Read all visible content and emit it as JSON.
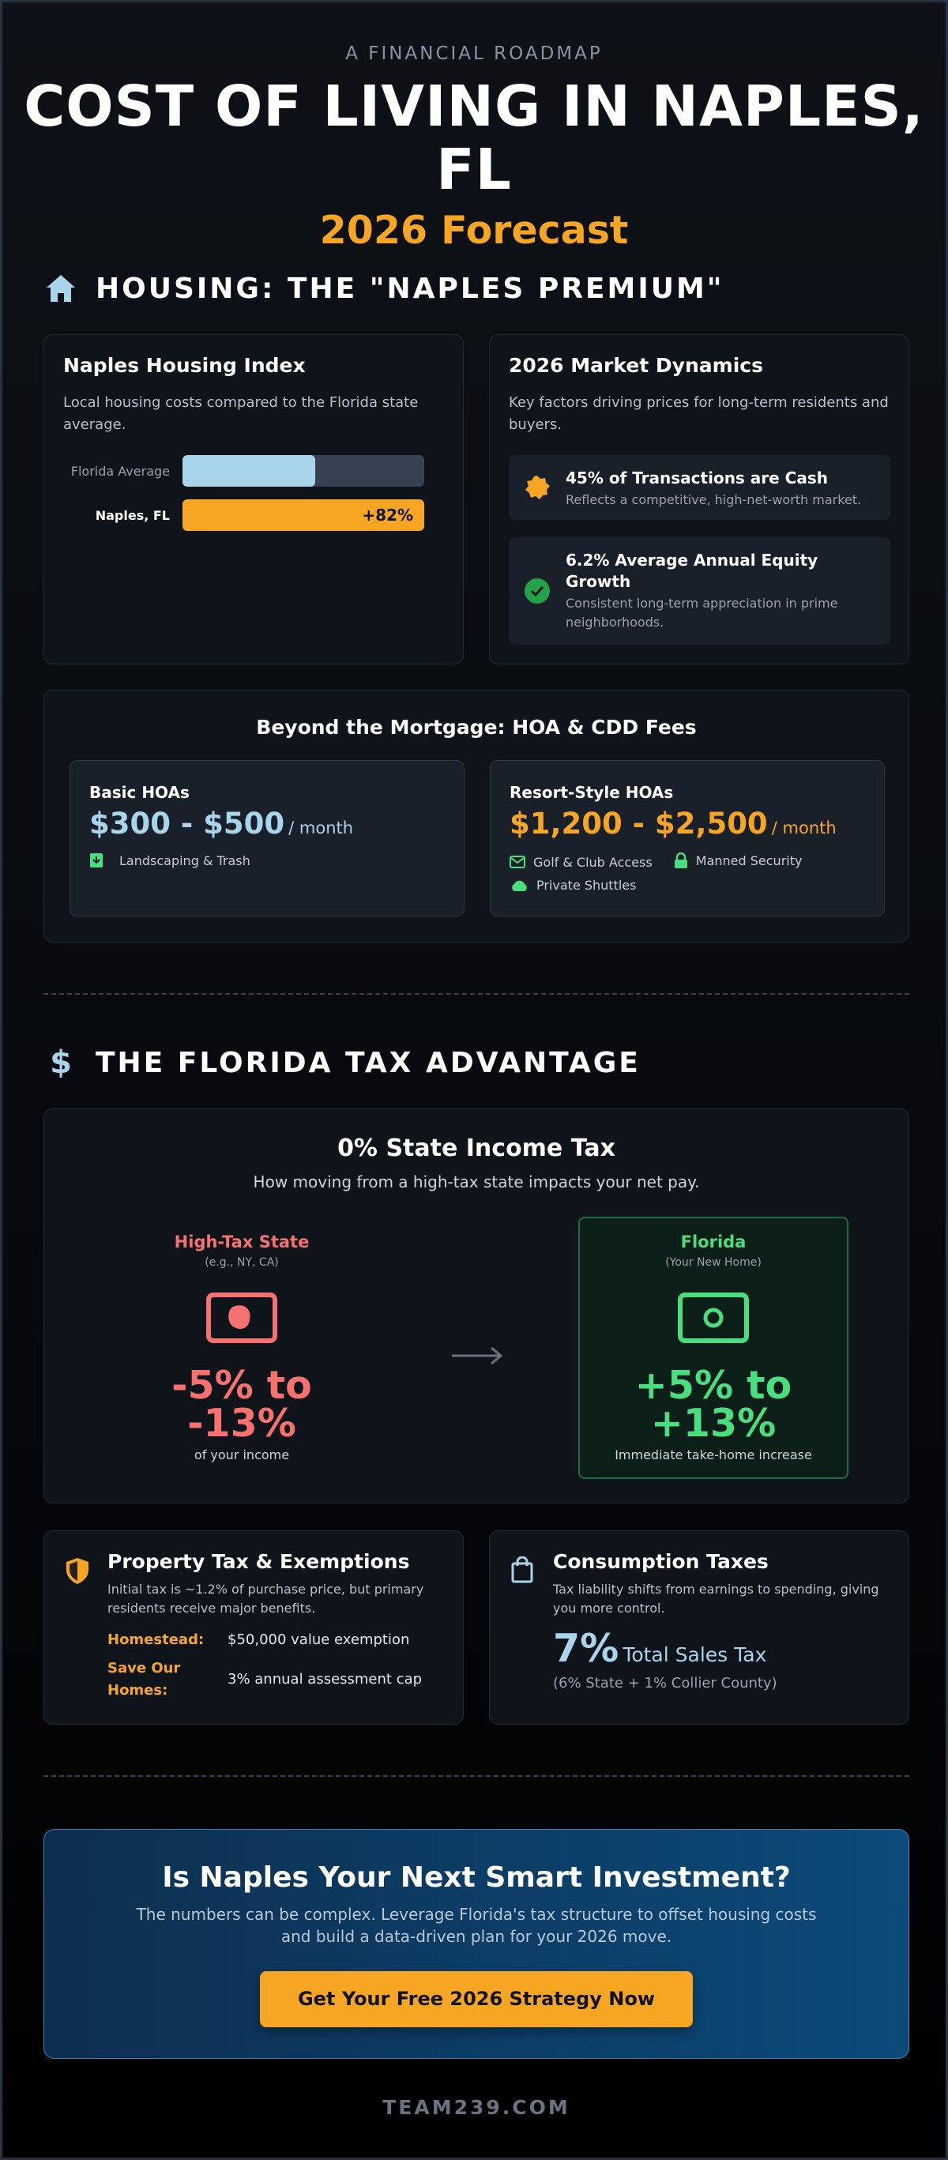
{
  "hero": {
    "eyebrow": "A FINANCIAL ROADMAP",
    "title_line1": "COST OF LIVING IN NAPLES,",
    "title_line2": "FL",
    "subtitle": "2026 Forecast"
  },
  "housing": {
    "heading": "HOUSING: THE \"NAPLES PREMIUM\"",
    "index_card": {
      "title": "Naples Housing Index",
      "description": "Local housing costs compared to the Florida state average.",
      "bars": [
        {
          "label": "Florida Average",
          "fill_fraction": 0.55,
          "color": "#a8d4ec",
          "value_label": ""
        },
        {
          "label": "Naples, FL",
          "fill_fraction": 1.0,
          "color": "#f6a623",
          "value_label": "+82%"
        }
      ]
    },
    "dynamics_card": {
      "title": "2026 Market Dynamics",
      "description": "Key factors driving prices for long-term residents and buyers.",
      "items": [
        {
          "icon": "badge-icon",
          "title": "45% of Transactions are Cash",
          "subtitle": "Reflects a competitive, high-net-worth market."
        },
        {
          "icon": "check-circle-icon",
          "title": "6.2% Average Annual Equity Growth",
          "subtitle": "Consistent long-term appreciation in prime neighborhoods."
        }
      ]
    },
    "hoa": {
      "title": "Beyond the Mortgage: HOA & CDD Fees",
      "basic": {
        "title": "Basic HOAs",
        "price": "$300 - $500",
        "unit": "/ month",
        "features": [
          {
            "icon": "trash-icon",
            "label": "Landscaping & Trash"
          }
        ]
      },
      "resort": {
        "title": "Resort-Style HOAs",
        "price": "$1,200 - $2,500",
        "unit": "/ month",
        "features": [
          {
            "icon": "mail-icon",
            "label": "Golf & Club Access"
          },
          {
            "icon": "lock-icon",
            "label": "Manned Security"
          },
          {
            "icon": "cloud-icon",
            "label": "Private Shuttles"
          }
        ]
      }
    }
  },
  "tax": {
    "heading": "THE FLORIDA TAX ADVANTAGE",
    "income": {
      "title": "0% State Income Tax",
      "subtitle": "How moving from a high-tax state impacts your net pay.",
      "high": {
        "title": "High-Tax State",
        "sub": "(e.g., NY, CA)",
        "big_line1": "-5% to",
        "big_line2": "-13%",
        "foot": "of your income"
      },
      "florida": {
        "title": "Florida",
        "sub": "(Your New Home)",
        "big_line1": "+5% to",
        "big_line2": "+13%",
        "foot": "Immediate take-home increase"
      }
    },
    "property": {
      "title": "Property Tax & Exemptions",
      "description": "Initial tax is ~1.2% of purchase price, but primary residents receive major benefits.",
      "rows": [
        {
          "key": "Homestead:",
          "value": "$50,000 value exemption"
        },
        {
          "key_line1": "Save Our",
          "key_line2": "Homes:",
          "value": "3% annual assessment cap"
        }
      ]
    },
    "consumption": {
      "title": "Consumption Taxes",
      "description": "Tax liability shifts from earnings to spending, giving you more control.",
      "big": "7%",
      "big_label": "Total Sales Tax",
      "note": "(6% State + 1% Collier County)"
    }
  },
  "cta": {
    "title": "Is Naples Your Next Smart Investment?",
    "line1": "The numbers can be complex. Leverage Florida's tax structure to offset housing costs",
    "line2": "and build a data-driven plan for your 2026 move.",
    "button": "Get Your Free 2026 Strategy Now"
  },
  "footer": "TEAM239.COM",
  "colors": {
    "accent": "#f6a623",
    "blue": "#a8d4ec",
    "red": "#f87171",
    "green": "#4ade80"
  }
}
